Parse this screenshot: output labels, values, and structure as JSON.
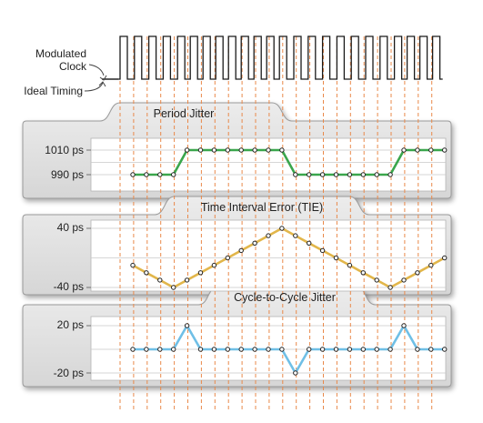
{
  "clock": {
    "modulated_label_line1": "Modulated",
    "modulated_label_line2": "Clock",
    "ideal_label": "Ideal Timing",
    "ideal_edge_count": 24,
    "modulated_edge_offsets": [
      0,
      1,
      2,
      3,
      4,
      3,
      2,
      1,
      0,
      -1,
      -2,
      -3,
      -4,
      -3,
      -2,
      -1,
      0,
      1,
      2,
      3,
      4,
      3,
      2,
      1
    ],
    "colors": {
      "edge": "#1a1a1a",
      "ideal": "#e9894a"
    }
  },
  "panels": [
    {
      "title": "Period Jitter",
      "y_ticks": [
        "1010 ps",
        "990 ps"
      ],
      "y_tick_values": [
        1010,
        990
      ],
      "ylim": [
        980,
        1020
      ],
      "values": [
        990,
        990,
        990,
        990,
        1010,
        1010,
        1010,
        1010,
        1010,
        1010,
        1010,
        1010,
        990,
        990,
        990,
        990,
        990,
        990,
        990,
        990,
        1010,
        1010,
        1010,
        1010
      ],
      "line_color": "#3aa64c"
    },
    {
      "title": "Time Interval Error (TIE)",
      "y_ticks": [
        "40 ps",
        "-40 ps"
      ],
      "y_tick_values": [
        40,
        -40
      ],
      "ylim": [
        -40,
        40
      ],
      "values": [
        -10,
        -20,
        -30,
        -40,
        -30,
        -20,
        -10,
        0,
        10,
        20,
        30,
        40,
        30,
        20,
        10,
        0,
        -10,
        -20,
        -30,
        -40,
        -30,
        -20,
        -10,
        0
      ],
      "line_color": "#e2b64a"
    },
    {
      "title": "Cycle-to-Cycle Jitter",
      "y_ticks": [
        "20 ps",
        "-20 ps"
      ],
      "y_tick_values": [
        20,
        -20
      ],
      "ylim": [
        -20,
        20
      ],
      "values": [
        0,
        0,
        0,
        0,
        20,
        0,
        0,
        0,
        0,
        0,
        0,
        0,
        -20,
        0,
        0,
        0,
        0,
        0,
        0,
        0,
        20,
        0,
        0,
        0
      ],
      "line_color": "#6fbfe6"
    }
  ]
}
